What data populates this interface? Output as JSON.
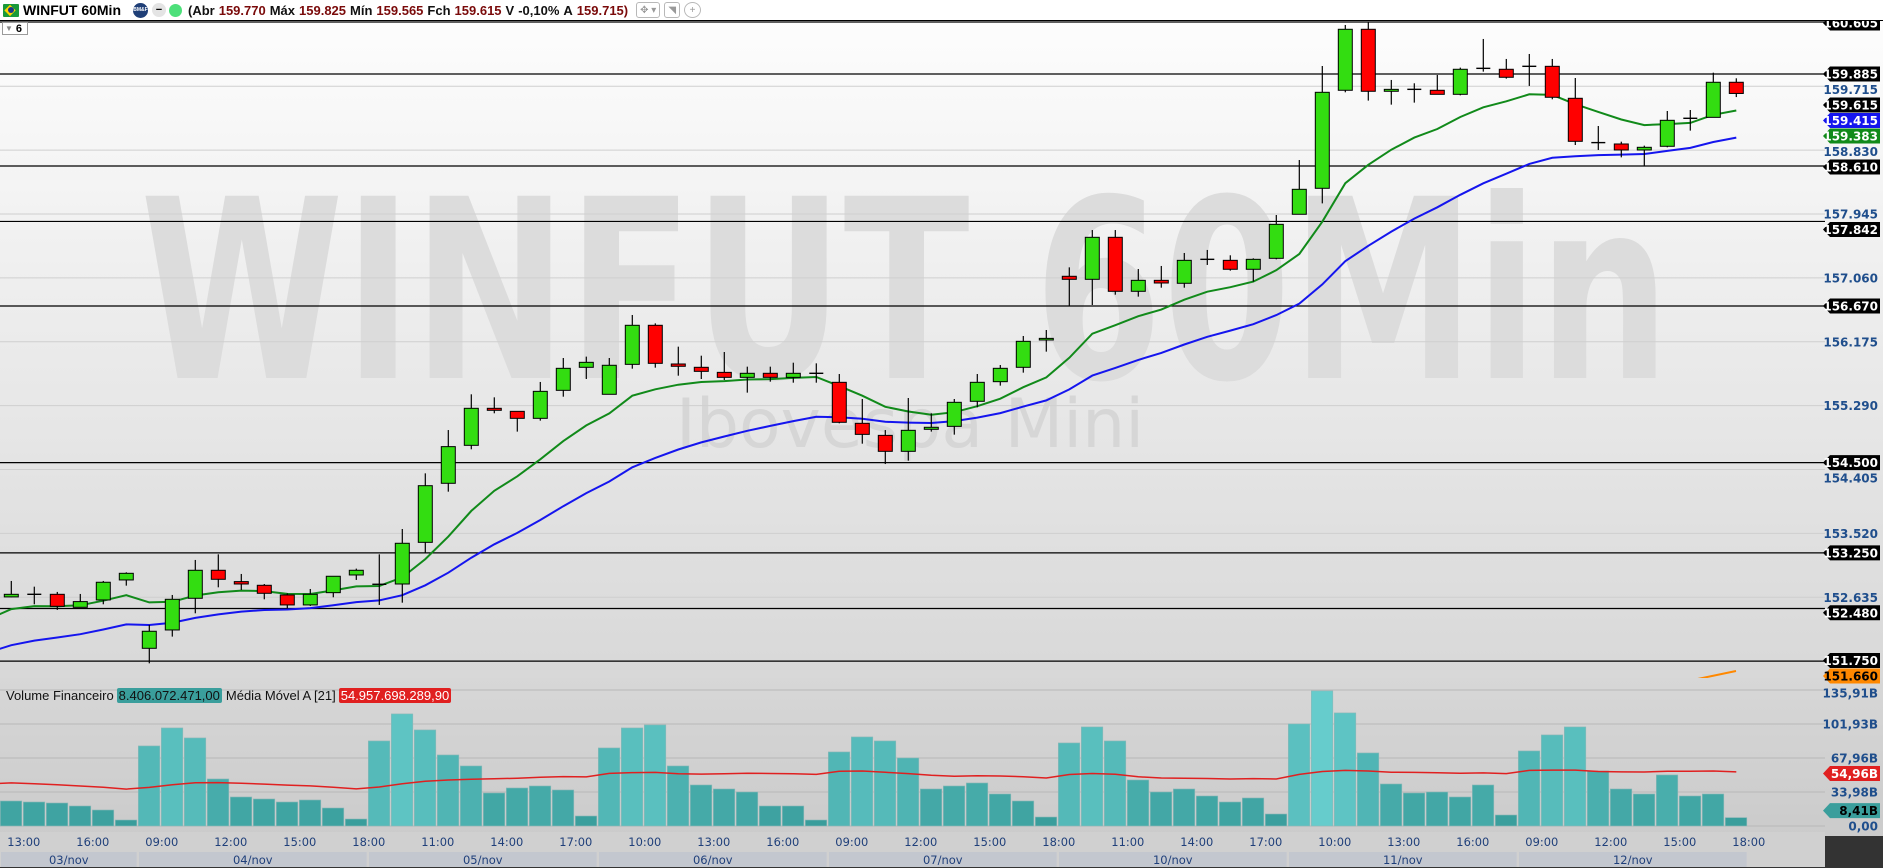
{
  "header": {
    "symbol": "WINFUT 60Min",
    "exchange_badge": "BM&F",
    "open_label": "(Abr",
    "open": "159.770",
    "high_label": "Máx",
    "high": "159.825",
    "low_label": "Mín",
    "low": "159.565",
    "close_label": "Fch",
    "close": "159.615",
    "var_label": "V",
    "var": "-0,10%",
    "last_label": "A",
    "last": "159.715)",
    "icons": [
      "brazil-flag-icon",
      "exchange-icon",
      "minus-icon",
      "status-online-icon",
      "crosshair-dropdown-icon",
      "arrow-corner-icon",
      "plus-icon"
    ]
  },
  "selector": {
    "value": "6"
  },
  "watermark": {
    "title": "WINFUT 60Min",
    "subtitle": "Ibovespa Mini"
  },
  "volume_legend": {
    "label": "Volume Financeiro",
    "value": "8.406.072.471,00",
    "ma_label": "Média Móvel A [21]",
    "ma_value": "54.957.698.289,90"
  },
  "colors": {
    "up": "#33dd11",
    "down": "#ff0000",
    "ma_fast": "#118a1a",
    "ma_slow": "#1515ee",
    "volume": "#3fa5a3",
    "volume_ma": "#e02020",
    "indicator": "#ff8800"
  },
  "chart_data": {
    "type": "candlestick",
    "price_range": [
      151750,
      160605
    ],
    "price_grid_labels": [
      "159.715",
      "158.830",
      "157.945",
      "157.060",
      "156.175",
      "155.290",
      "154.405",
      "153.520",
      "152.635"
    ],
    "price_grid_values": [
      159715,
      158830,
      157945,
      157060,
      156175,
      155290,
      154405,
      153520,
      152635
    ],
    "horizontal_lines": [
      {
        "value": 160605,
        "label": "160.605"
      },
      {
        "value": 159885,
        "label": "159.885"
      },
      {
        "value": 158610,
        "label": "158.610"
      },
      {
        "value": 157842,
        "label": "157.842"
      },
      {
        "value": 156670,
        "label": "156.670"
      },
      {
        "value": 154500,
        "label": "154.500"
      },
      {
        "value": 153250,
        "label": "153.250"
      },
      {
        "value": 152480,
        "label": "152.480"
      },
      {
        "value": 151750,
        "label": "151.750"
      }
    ],
    "last_price_tag": {
      "value": 159615,
      "label": "159.615"
    },
    "ma_slow_tag": {
      "value": 159415,
      "label": "159.415"
    },
    "ma_fast_tag": {
      "value": 159383,
      "label": "159.383"
    },
    "indicator_tag": {
      "value": 151660,
      "label": "151.660"
    },
    "candles_ohlc": [
      [
        152640,
        152861,
        152635,
        152676
      ],
      [
        152676,
        152782,
        152538,
        152676
      ],
      [
        152676,
        152709,
        152460,
        152510
      ],
      [
        152496,
        152681,
        152496,
        152575
      ],
      [
        152598,
        152861,
        152538,
        152843
      ],
      [
        152875,
        152981,
        152796,
        152967
      ],
      [
        151928,
        152252,
        151720,
        152164
      ],
      [
        152182,
        152667,
        152090,
        152607
      ],
      [
        152621,
        153152,
        152413,
        153009
      ],
      [
        153009,
        153230,
        152773,
        152884
      ],
      [
        152852,
        152958,
        152736,
        152819
      ],
      [
        152801,
        152819,
        152607,
        152690
      ],
      [
        152667,
        152690,
        152478,
        152529
      ],
      [
        152529,
        152750,
        152515,
        152676
      ],
      [
        152699,
        152926,
        152635,
        152926
      ],
      [
        152944,
        153032,
        152875,
        153009
      ],
      [
        152815,
        153230,
        152529,
        152815
      ],
      [
        152819,
        153581,
        152560,
        153383
      ],
      [
        153396,
        154352,
        153253,
        154181
      ],
      [
        154214,
        154952,
        154098,
        154722
      ],
      [
        154740,
        155447,
        154685,
        155253
      ],
      [
        155253,
        155405,
        155184,
        155225
      ],
      [
        155211,
        155211,
        154930,
        155114
      ],
      [
        155114,
        155618,
        155082,
        155488
      ],
      [
        155502,
        155950,
        155414,
        155807
      ],
      [
        155821,
        155969,
        155659,
        155890
      ],
      [
        155447,
        155950,
        155447,
        155849
      ],
      [
        155862,
        156546,
        155802,
        156403
      ],
      [
        156403,
        156430,
        155816,
        155876
      ],
      [
        155867,
        156107,
        155705,
        155835
      ],
      [
        155821,
        155982,
        155659,
        155765
      ],
      [
        155751,
        156033,
        155645,
        155682
      ],
      [
        155682,
        155830,
        155470,
        155738
      ],
      [
        155738,
        155830,
        155622,
        155682
      ],
      [
        155682,
        155885,
        155608,
        155738
      ],
      [
        155738,
        155876,
        155608,
        155738
      ],
      [
        155613,
        155728,
        155045,
        155059
      ],
      [
        155045,
        155382,
        154763,
        154892
      ],
      [
        154878,
        154952,
        154481,
        154657
      ],
      [
        154657,
        155396,
        154528,
        154948
      ],
      [
        154962,
        155184,
        154930,
        154990
      ],
      [
        155003,
        155382,
        154888,
        155336
      ],
      [
        155350,
        155728,
        155267,
        155613
      ],
      [
        155622,
        155853,
        155567,
        155807
      ],
      [
        155821,
        156255,
        155747,
        156181
      ],
      [
        156199,
        156338,
        156038,
        156222
      ],
      [
        157082,
        157206,
        156671,
        157040
      ],
      [
        157040,
        157723,
        156684,
        157622
      ],
      [
        157622,
        157723,
        156827,
        156874
      ],
      [
        156874,
        157183,
        156800,
        157026
      ],
      [
        157026,
        157225,
        156924,
        156989
      ],
      [
        156985,
        157405,
        156924,
        157303
      ],
      [
        157317,
        157447,
        157239,
        157317
      ],
      [
        157303,
        157373,
        157160,
        157179
      ],
      [
        157179,
        157331,
        157008,
        157317
      ],
      [
        157331,
        157931,
        157317,
        157802
      ],
      [
        157941,
        158693,
        157941,
        158287
      ],
      [
        158301,
        159996,
        158093,
        159631
      ],
      [
        159659,
        160564,
        159631,
        160504
      ],
      [
        160504,
        160605,
        159516,
        159645
      ],
      [
        159645,
        159802,
        159460,
        159672
      ],
      [
        159672,
        159756,
        159488,
        159672
      ],
      [
        159659,
        159871,
        159603,
        159603
      ],
      [
        159603,
        159973,
        159589,
        159950
      ],
      [
        159963,
        160370,
        159917,
        159963
      ],
      [
        159950,
        160093,
        159820,
        159839
      ],
      [
        159991,
        160162,
        159719,
        159991
      ],
      [
        159991,
        160093,
        159534,
        159562
      ],
      [
        159548,
        159829,
        158901,
        158952
      ],
      [
        158934,
        159164,
        158832,
        158934
      ],
      [
        158915,
        158947,
        158730,
        158832
      ],
      [
        158832,
        158892,
        158610,
        158869
      ],
      [
        158883,
        159372,
        158869,
        159243
      ],
      [
        159271,
        159386,
        159100,
        159271
      ],
      [
        159284,
        159903,
        159284,
        159770
      ],
      [
        159770,
        159825,
        159565,
        159615
      ]
    ],
    "volume_billions": [
      25,
      24,
      23,
      20,
      16,
      6,
      80,
      98,
      88,
      47,
      29,
      27,
      24,
      26,
      18,
      7,
      85,
      112,
      96,
      71,
      60,
      33,
      38,
      40,
      36,
      10,
      78,
      98,
      101,
      60,
      41,
      37,
      34,
      20,
      20,
      6,
      74,
      89,
      85,
      68,
      37,
      40,
      43,
      32,
      25,
      9,
      83,
      99,
      85,
      46,
      34,
      37,
      30,
      24,
      28,
      12,
      102,
      135,
      113,
      73,
      42,
      33,
      34,
      29,
      41,
      11,
      75,
      91,
      99,
      55,
      37,
      32,
      51,
      30,
      32,
      8.41
    ],
    "volume_range": [
      0,
      135.91
    ],
    "volume_grid_labels": [
      "135,91B",
      "101,93B",
      "67,96B",
      "33,98B",
      "0,00"
    ],
    "volume_grid_values": [
      135.91,
      101.93,
      67.96,
      33.98,
      0
    ],
    "volume_last_tag": {
      "value": 8.41,
      "label": "8,41B"
    },
    "volume_ma_tag": {
      "value": 54.96,
      "label": "54,96B"
    },
    "time_labels": [
      {
        "index": 0,
        "label": "13:00"
      },
      {
        "index": 3,
        "label": "16:00"
      },
      {
        "index": 6,
        "label": "09:00"
      },
      {
        "index": 9,
        "label": "12:00"
      },
      {
        "index": 12,
        "label": "15:00"
      },
      {
        "index": 15,
        "label": "18:00"
      },
      {
        "index": 18,
        "label": "11:00"
      },
      {
        "index": 21,
        "label": "14:00"
      },
      {
        "index": 24,
        "label": "17:00"
      },
      {
        "index": 27,
        "label": "10:00"
      },
      {
        "index": 30,
        "label": "13:00"
      },
      {
        "index": 33,
        "label": "16:00"
      },
      {
        "index": 36,
        "label": "09:00"
      },
      {
        "index": 39,
        "label": "12:00"
      },
      {
        "index": 42,
        "label": "15:00"
      },
      {
        "index": 45,
        "label": "18:00"
      },
      {
        "index": 48,
        "label": "11:00"
      },
      {
        "index": 51,
        "label": "14:00"
      },
      {
        "index": 54,
        "label": "17:00"
      },
      {
        "index": 57,
        "label": "10:00"
      },
      {
        "index": 60,
        "label": "13:00"
      },
      {
        "index": 63,
        "label": "16:00"
      },
      {
        "index": 66,
        "label": "09:00"
      },
      {
        "index": 69,
        "label": "12:00"
      },
      {
        "index": 72,
        "label": "15:00"
      },
      {
        "index": 75,
        "label": "18:00"
      }
    ],
    "dates": [
      {
        "start": 0,
        "end": 5,
        "label": "03/nov"
      },
      {
        "start": 6,
        "end": 15,
        "label": "04/nov"
      },
      {
        "start": 16,
        "end": 25,
        "label": "05/nov"
      },
      {
        "start": 26,
        "end": 35,
        "label": "06/nov"
      },
      {
        "start": 36,
        "end": 45,
        "label": "07/nov"
      },
      {
        "start": 46,
        "end": 55,
        "label": "10/nov"
      },
      {
        "start": 56,
        "end": 65,
        "label": "11/nov"
      },
      {
        "start": 66,
        "end": 75,
        "label": "12/nov"
      }
    ]
  }
}
